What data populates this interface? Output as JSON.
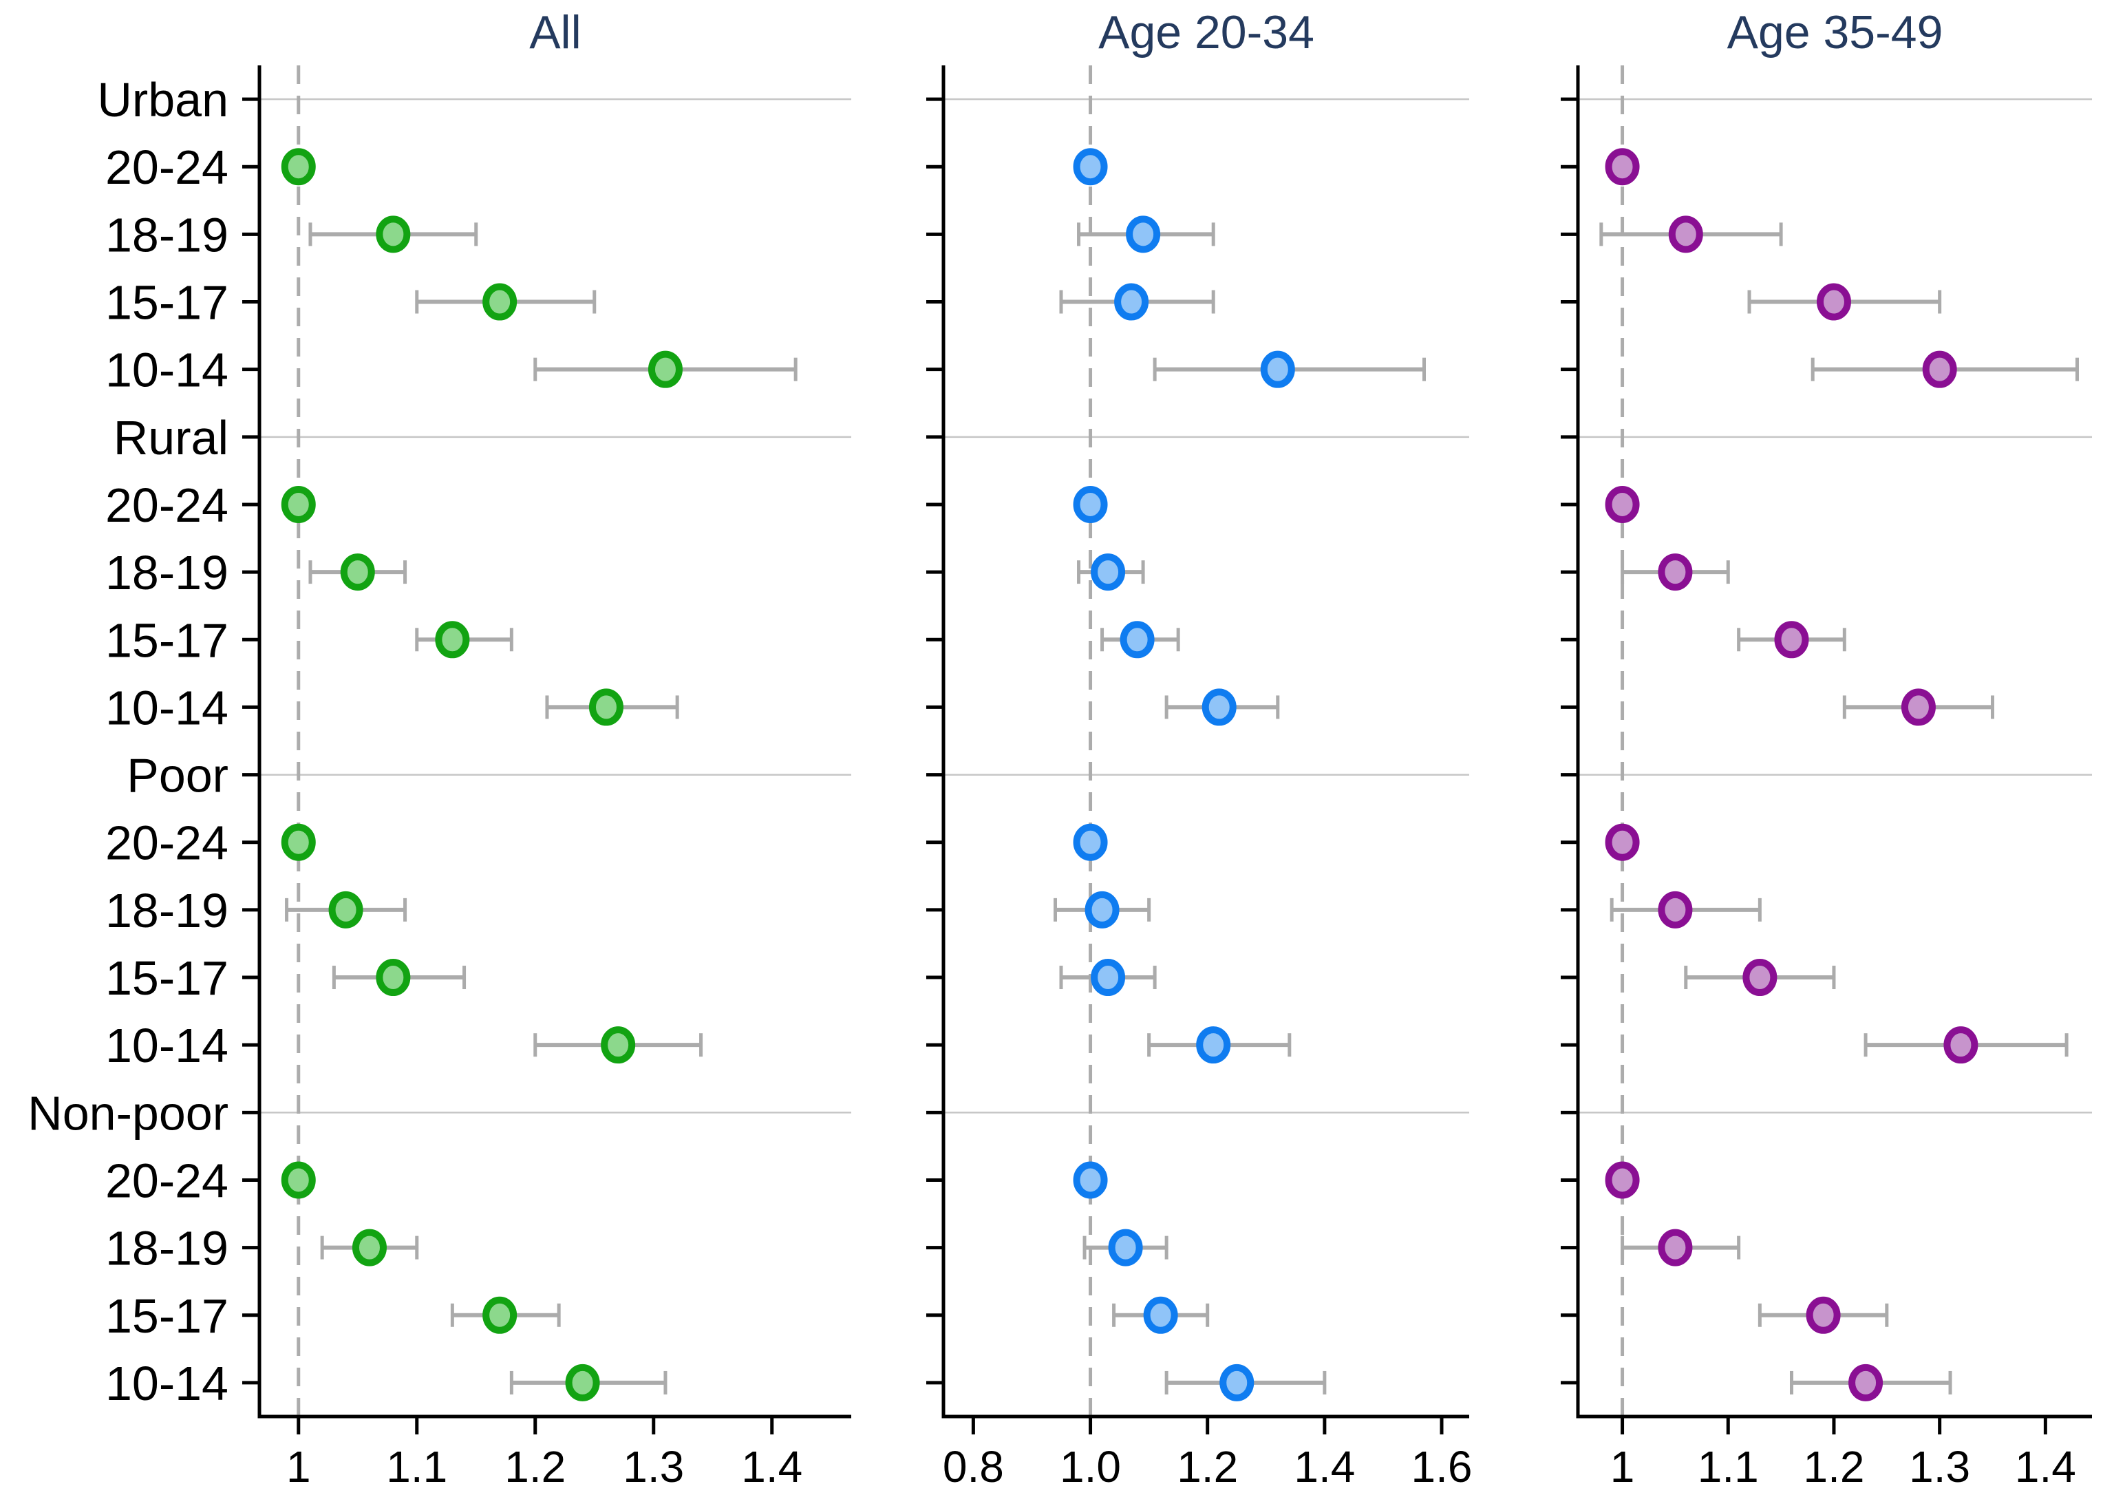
{
  "chart_data": {
    "type": "forest",
    "description": "Three-panel forest/dot plot of rate ratios with 95% CI whiskers, reference line at 1",
    "reference_value": 1.0,
    "row_labels": [
      {
        "label": "Urban",
        "type": "group"
      },
      {
        "label": "20-24",
        "type": "age"
      },
      {
        "label": "18-19",
        "type": "age"
      },
      {
        "label": "15-17",
        "type": "age"
      },
      {
        "label": "10-14",
        "type": "age"
      },
      {
        "label": "Rural",
        "type": "group"
      },
      {
        "label": "20-24",
        "type": "age"
      },
      {
        "label": "18-19",
        "type": "age"
      },
      {
        "label": "15-17",
        "type": "age"
      },
      {
        "label": "10-14",
        "type": "age"
      },
      {
        "label": "Poor",
        "type": "group"
      },
      {
        "label": "20-24",
        "type": "age"
      },
      {
        "label": "18-19",
        "type": "age"
      },
      {
        "label": "15-17",
        "type": "age"
      },
      {
        "label": "10-14",
        "type": "age"
      },
      {
        "label": "Non-poor",
        "type": "group"
      },
      {
        "label": "20-24",
        "type": "age"
      },
      {
        "label": "18-19",
        "type": "age"
      },
      {
        "label": "15-17",
        "type": "age"
      },
      {
        "label": "10-14",
        "type": "age"
      }
    ],
    "style": {
      "title_color": "#243A5E",
      "axis_color": "#000000",
      "label_color": "#000000",
      "ci_color": "#ABABAB",
      "ref_line_color": "#ACACAC",
      "grid_color": "#C6C6C6"
    },
    "panels": [
      {
        "title": "All",
        "marker_fill": "#8CD88C",
        "marker_stroke": "#12A312",
        "xlim": [
          0.967,
          1.467
        ],
        "ticks": [
          {
            "value": 1.0,
            "label": "1"
          },
          {
            "value": 1.1,
            "label": "1.1"
          },
          {
            "value": 1.2,
            "label": "1.2"
          },
          {
            "value": 1.3,
            "label": "1.3"
          },
          {
            "value": 1.4,
            "label": "1.4"
          }
        ],
        "points": [
          null,
          {
            "est": 1.0,
            "lo": null,
            "hi": null
          },
          {
            "est": 1.08,
            "lo": 1.01,
            "hi": 1.15
          },
          {
            "est": 1.17,
            "lo": 1.1,
            "hi": 1.25
          },
          {
            "est": 1.31,
            "lo": 1.2,
            "hi": 1.42
          },
          null,
          {
            "est": 1.0,
            "lo": null,
            "hi": null
          },
          {
            "est": 1.05,
            "lo": 1.01,
            "hi": 1.09
          },
          {
            "est": 1.13,
            "lo": 1.1,
            "hi": 1.18
          },
          {
            "est": 1.26,
            "lo": 1.21,
            "hi": 1.32
          },
          null,
          {
            "est": 1.0,
            "lo": null,
            "hi": null
          },
          {
            "est": 1.04,
            "lo": 0.99,
            "hi": 1.09
          },
          {
            "est": 1.08,
            "lo": 1.03,
            "hi": 1.14
          },
          {
            "est": 1.27,
            "lo": 1.2,
            "hi": 1.34
          },
          null,
          {
            "est": 1.0,
            "lo": null,
            "hi": null
          },
          {
            "est": 1.06,
            "lo": 1.02,
            "hi": 1.1
          },
          {
            "est": 1.17,
            "lo": 1.13,
            "hi": 1.22
          },
          {
            "est": 1.24,
            "lo": 1.18,
            "hi": 1.31
          }
        ]
      },
      {
        "title": "Age 20-34",
        "marker_fill": "#90C4F8",
        "marker_stroke": "#0F7CF0",
        "xlim": [
          0.749,
          1.647
        ],
        "ticks": [
          {
            "value": 0.8,
            "label": "0.8"
          },
          {
            "value": 1.0,
            "label": "1.0"
          },
          {
            "value": 1.2,
            "label": "1.2"
          },
          {
            "value": 1.4,
            "label": "1.4"
          },
          {
            "value": 1.6,
            "label": "1.6"
          }
        ],
        "points": [
          null,
          {
            "est": 1.0,
            "lo": null,
            "hi": null
          },
          {
            "est": 1.09,
            "lo": 0.98,
            "hi": 1.21
          },
          {
            "est": 1.07,
            "lo": 0.95,
            "hi": 1.21
          },
          {
            "est": 1.32,
            "lo": 1.11,
            "hi": 1.57
          },
          null,
          {
            "est": 1.0,
            "lo": null,
            "hi": null
          },
          {
            "est": 1.03,
            "lo": 0.98,
            "hi": 1.09
          },
          {
            "est": 1.08,
            "lo": 1.02,
            "hi": 1.15
          },
          {
            "est": 1.22,
            "lo": 1.13,
            "hi": 1.32
          },
          null,
          {
            "est": 1.0,
            "lo": null,
            "hi": null
          },
          {
            "est": 1.02,
            "lo": 0.94,
            "hi": 1.1
          },
          {
            "est": 1.03,
            "lo": 0.95,
            "hi": 1.11
          },
          {
            "est": 1.21,
            "lo": 1.1,
            "hi": 1.34
          },
          null,
          {
            "est": 1.0,
            "lo": null,
            "hi": null
          },
          {
            "est": 1.06,
            "lo": 0.99,
            "hi": 1.13
          },
          {
            "est": 1.12,
            "lo": 1.04,
            "hi": 1.2
          },
          {
            "est": 1.25,
            "lo": 1.13,
            "hi": 1.4
          }
        ]
      },
      {
        "title": "Age 35-49",
        "marker_fill": "#C794CC",
        "marker_stroke": "#8A0F93",
        "xlim": [
          0.958,
          1.444
        ],
        "ticks": [
          {
            "value": 1.0,
            "label": "1"
          },
          {
            "value": 1.1,
            "label": "1.1"
          },
          {
            "value": 1.2,
            "label": "1.2"
          },
          {
            "value": 1.3,
            "label": "1.3"
          },
          {
            "value": 1.4,
            "label": "1.4"
          }
        ],
        "points": [
          null,
          {
            "est": 1.0,
            "lo": null,
            "hi": null
          },
          {
            "est": 1.06,
            "lo": 0.98,
            "hi": 1.15
          },
          {
            "est": 1.2,
            "lo": 1.12,
            "hi": 1.3
          },
          {
            "est": 1.3,
            "lo": 1.18,
            "hi": 1.43
          },
          null,
          {
            "est": 1.0,
            "lo": null,
            "hi": null
          },
          {
            "est": 1.05,
            "lo": 1.0,
            "hi": 1.1
          },
          {
            "est": 1.16,
            "lo": 1.11,
            "hi": 1.21
          },
          {
            "est": 1.28,
            "lo": 1.21,
            "hi": 1.35
          },
          null,
          {
            "est": 1.0,
            "lo": null,
            "hi": null
          },
          {
            "est": 1.05,
            "lo": 0.99,
            "hi": 1.13
          },
          {
            "est": 1.13,
            "lo": 1.06,
            "hi": 1.2
          },
          {
            "est": 1.32,
            "lo": 1.23,
            "hi": 1.42
          },
          null,
          {
            "est": 1.0,
            "lo": null,
            "hi": null
          },
          {
            "est": 1.05,
            "lo": 1.0,
            "hi": 1.11
          },
          {
            "est": 1.19,
            "lo": 1.13,
            "hi": 1.25
          },
          {
            "est": 1.23,
            "lo": 1.16,
            "hi": 1.31
          }
        ]
      }
    ]
  }
}
